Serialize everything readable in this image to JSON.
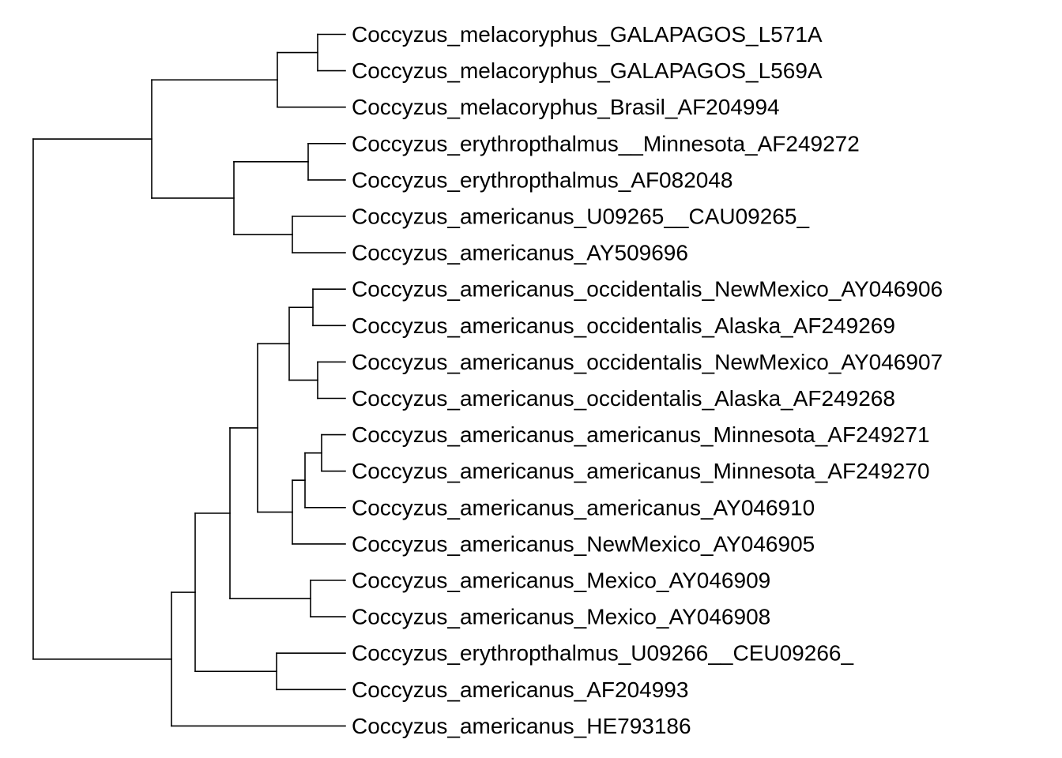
{
  "tree": {
    "line_color": "#000000",
    "taxa": [
      "Coccyzus_melacoryphus_GALAPAGOS_L571A",
      "Coccyzus_melacoryphus_GALAPAGOS_L569A",
      "Coccyzus_melacoryphus_Brasil_AF204994",
      "Coccyzus_erythropthalmus__Minnesota_AF249272",
      "Coccyzus_erythropthalmus_AF082048",
      "Coccyzus_americanus_U09265__CAU09265_",
      "Coccyzus_americanus_AY509696",
      "Coccyzus_americanus_occidentalis_NewMexico_AY046906",
      "Coccyzus_americanus_occidentalis_Alaska_AF249269",
      "Coccyzus_americanus_occidentalis_NewMexico_AY046907",
      "Coccyzus_americanus_occidentalis_Alaska_AF249268",
      "Coccyzus_americanus_americanus_Minnesota_AF249271",
      "Coccyzus_americanus_americanus_Minnesota_AF249270",
      "Coccyzus_americanus_americanus_AY046910",
      "Coccyzus_americanus_NewMexico_AY046905",
      "Coccyzus_americanus_Mexico_AY046909",
      "Coccyzus_americanus_Mexico_AY046908",
      "Coccyzus_erythropthalmus_U09266__CEU09266_",
      "Coccyzus_americanus_AF204993",
      "Coccyzus_americanus_HE793186"
    ]
  }
}
